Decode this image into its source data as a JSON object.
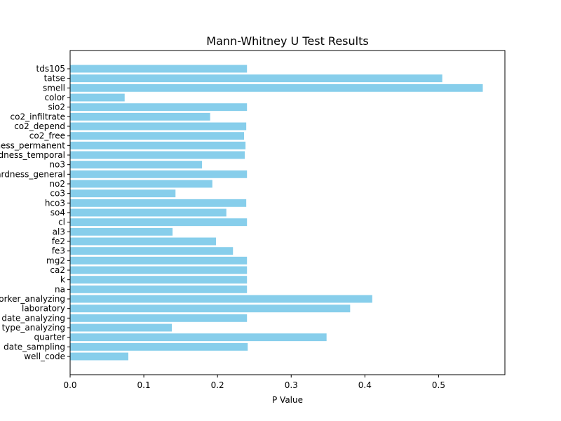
{
  "chart_data": {
    "type": "bar",
    "orientation": "horizontal",
    "title": "Mann-Whitney U Test Results",
    "xlabel": "P Value",
    "ylabel": "",
    "xlim": [
      0,
      0.59
    ],
    "xticks": [
      "0.0",
      "0.1",
      "0.2",
      "0.3",
      "0.4",
      "0.5"
    ],
    "bar_color": "#87CEEB",
    "categories": [
      "well_code",
      "date_sampling",
      "quarter",
      "type_analyzing",
      "date_analyzing",
      "laboratory",
      "worker_analyzing",
      "na",
      "k",
      "ca2",
      "mg2",
      "fe3",
      "fe2",
      "al3",
      "cl",
      "so4",
      "hco3",
      "co3",
      "no2",
      "hardness_general",
      "no3",
      "hardness_temporal",
      "hardness_permanent",
      "co2_free",
      "co2_depend",
      "co2_infiltrate",
      "sio2",
      "color",
      "smell",
      "tatse",
      "tds105"
    ],
    "values": [
      0.079,
      0.241,
      0.348,
      0.138,
      0.24,
      0.38,
      0.41,
      0.24,
      0.24,
      0.24,
      0.24,
      0.221,
      0.198,
      0.139,
      0.24,
      0.212,
      0.239,
      0.143,
      0.193,
      0.24,
      0.179,
      0.237,
      0.238,
      0.236,
      0.239,
      0.19,
      0.24,
      0.074,
      0.56,
      0.505,
      0.24
    ]
  }
}
